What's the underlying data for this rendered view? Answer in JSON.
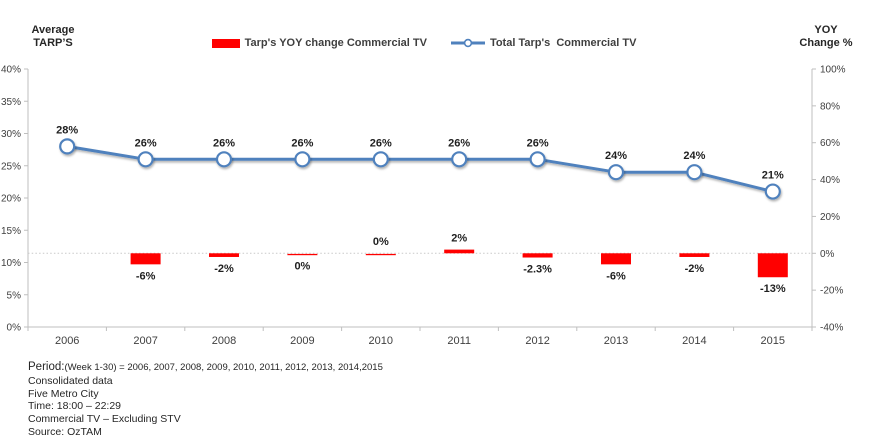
{
  "header": {
    "left_axis_title_line1": "Average",
    "left_axis_title_line2": "TARP’S",
    "right_axis_title_line1": "YOY",
    "right_axis_title_line2": "Change %"
  },
  "legend": {
    "bar_label": "Tarp's YOY change Commercial TV",
    "line_label": "Total Tarp's  Commercial TV"
  },
  "colors": {
    "bar": "#ff0000",
    "line": "#4f81bd",
    "marker_fill": "#ffffff",
    "axis_line": "#bfbfbf",
    "gridline": "#c9c9c9",
    "axis_text": "#404040",
    "label_text": "#1f1f1f"
  },
  "chart_data": {
    "type": "bar",
    "subtype": "combo-bar-line-dual-axis",
    "categories": [
      "2006",
      "2007",
      "2008",
      "2009",
      "2010",
      "2011",
      "2012",
      "2013",
      "2014",
      "2015"
    ],
    "series": [
      {
        "name": "Tarp's YOY change Commercial TV",
        "type": "bar",
        "axis": "right",
        "values": [
          null,
          -6,
          -2,
          0,
          0,
          2,
          -2.3,
          -6,
          -2,
          -13
        ],
        "labels": [
          "",
          "-6%",
          "-2%",
          "0%",
          "0%",
          "2%",
          "-2.3%",
          "-6%",
          "-2%",
          "-13%"
        ],
        "label_positions": [
          null,
          "below",
          "below",
          "below",
          "above",
          "above",
          "below",
          "below",
          "below",
          "below"
        ]
      },
      {
        "name": "Total Tarp's  Commercial TV",
        "type": "line",
        "axis": "left",
        "values": [
          28,
          26,
          26,
          26,
          26,
          26,
          26,
          24,
          24,
          21
        ],
        "labels": [
          "28%",
          "26%",
          "26%",
          "26%",
          "26%",
          "26%",
          "26%",
          "24%",
          "24%",
          "21%"
        ]
      }
    ],
    "left_axis": {
      "min": 0,
      "max": 40,
      "step": 5,
      "tick_labels": [
        "0%",
        "5%",
        "10%",
        "15%",
        "20%",
        "25%",
        "30%",
        "35%",
        "40%"
      ]
    },
    "right_axis": {
      "min": -40,
      "max": 100,
      "step": 20,
      "tick_labels": [
        "-40%",
        "-20%",
        "0%",
        "20%",
        "40%",
        "60%",
        "80%",
        "100%"
      ]
    },
    "grid": "dotted zero line of right axis only",
    "legend_position": "top-center"
  },
  "footer": {
    "period_label": "Period:",
    "period_detail": "(Week 1-30) = 2006, 2007, 2008, 2009, 2010, 2011, 2012, 2013, 2014,2015",
    "lines": [
      "Consolidated data",
      "Five Metro City",
      "Time: 18:00 – 22:29",
      "Commercial TV – Excluding STV",
      "Source: OzTAM"
    ]
  }
}
